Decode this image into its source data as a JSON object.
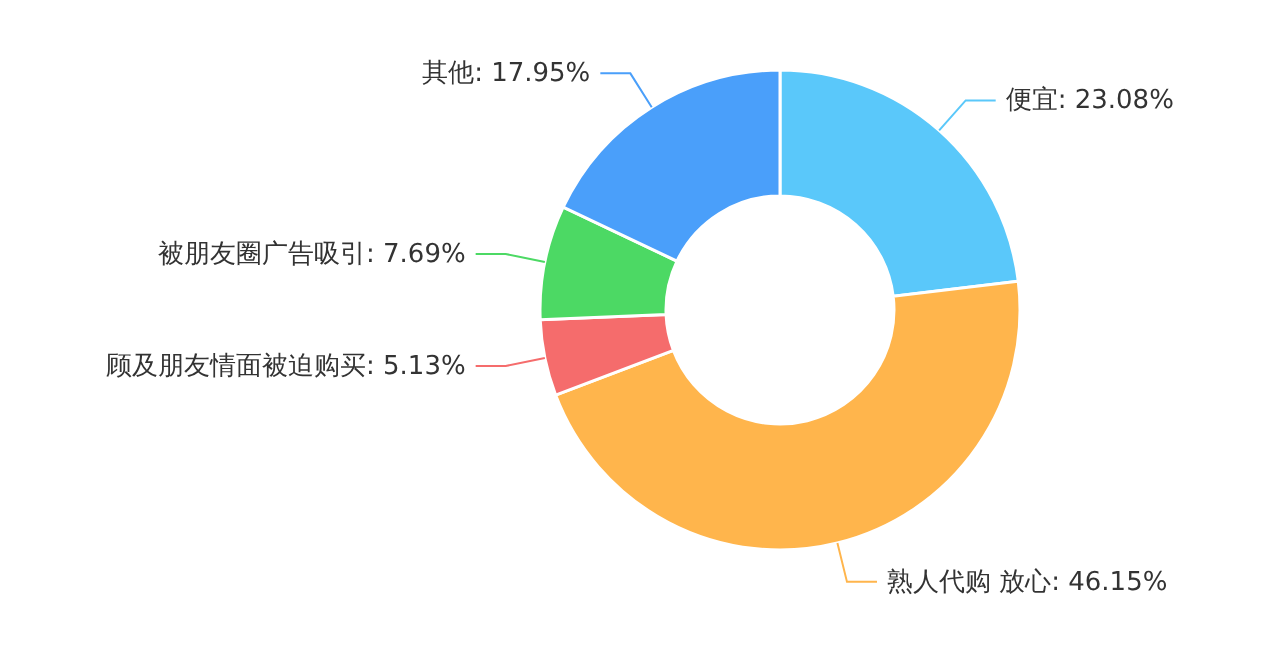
{
  "chart_data": {
    "type": "donut",
    "categories": [
      "便宜",
      "熟人代购 放心",
      "顾及朋友情面被迫购买",
      "被朋友圈广告吸引",
      "其他"
    ],
    "values": [
      23.08,
      46.15,
      5.13,
      7.69,
      17.95
    ],
    "value_labels": [
      "23.08%",
      "46.15%",
      "5.13%",
      "7.69%",
      "17.95%"
    ],
    "colors": [
      "#5ac8fa",
      "#ffb54c",
      "#f56c6c",
      "#4cd964",
      "#4a9ffa"
    ],
    "legend": false
  }
}
